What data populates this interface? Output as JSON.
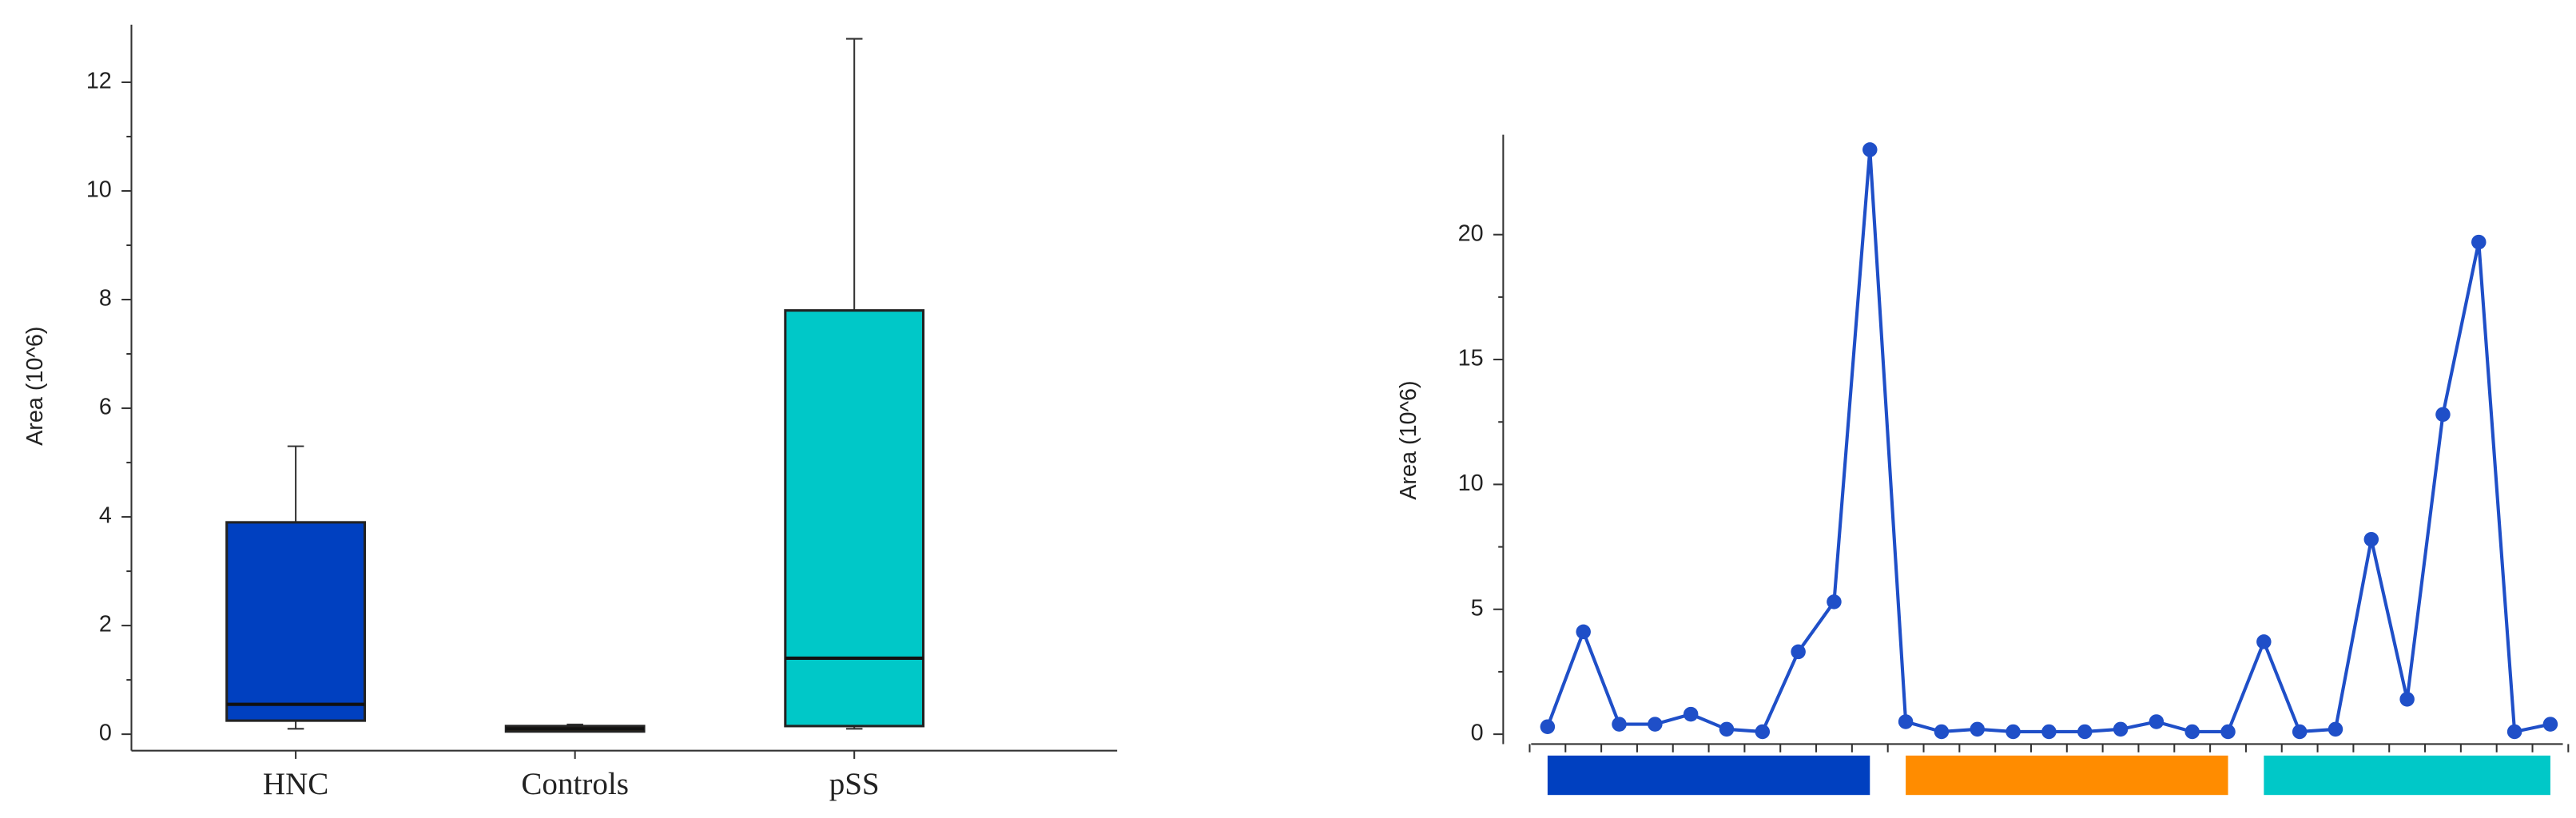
{
  "chart_data": [
    {
      "type": "box",
      "y_label": "Area (10^6)",
      "categories": [
        "HNC",
        "Controls",
        "pSS"
      ],
      "boxes": [
        {
          "min": 0.1,
          "q1": 0.25,
          "median": 0.55,
          "q3": 3.9,
          "max": 5.3,
          "color": "#0040c0"
        },
        {
          "min": 0.05,
          "q1": 0.05,
          "median": 0.1,
          "q3": 0.15,
          "max": 0.18,
          "color": "#ff8c00"
        },
        {
          "min": 0.1,
          "q1": 0.15,
          "median": 1.4,
          "q3": 7.8,
          "max": 12.8,
          "color": "#00c8c8"
        }
      ],
      "ylim": [
        0,
        13
      ],
      "yticks": [
        0,
        2,
        4,
        6,
        8,
        10,
        12
      ],
      "minor_yticks": [
        1,
        3,
        5,
        7,
        9,
        11
      ]
    },
    {
      "type": "line",
      "y_label": "Area (10^6)",
      "color": "#1f4fc8",
      "categories": [
        null,
        null,
        null,
        null,
        null,
        null,
        null,
        null,
        null,
        null,
        null,
        null,
        null,
        null,
        null,
        null,
        null,
        null,
        null,
        null,
        null,
        null,
        null,
        null,
        null,
        null,
        null,
        null,
        null
      ],
      "values": [
        0.3,
        4.1,
        0.4,
        0.4,
        0.8,
        0.2,
        0.1,
        3.3,
        5.3,
        23.4,
        0.5,
        0.1,
        0.2,
        0.1,
        0.1,
        0.1,
        0.2,
        0.5,
        0.1,
        0.1,
        3.7,
        0.1,
        0.2,
        7.8,
        1.4,
        12.8,
        19.7,
        0.1,
        0.4
      ],
      "groups": [
        {
          "color": "#0040c0",
          "count": 10
        },
        {
          "color": "#ff8c00",
          "count": 10
        },
        {
          "color": "#00c8c8",
          "count": 9
        }
      ],
      "ylim": [
        0,
        24
      ],
      "yticks": [
        0,
        5,
        10,
        15,
        20
      ],
      "minor_yticks": [
        2.5,
        7.5,
        12.5,
        17.5
      ]
    }
  ]
}
